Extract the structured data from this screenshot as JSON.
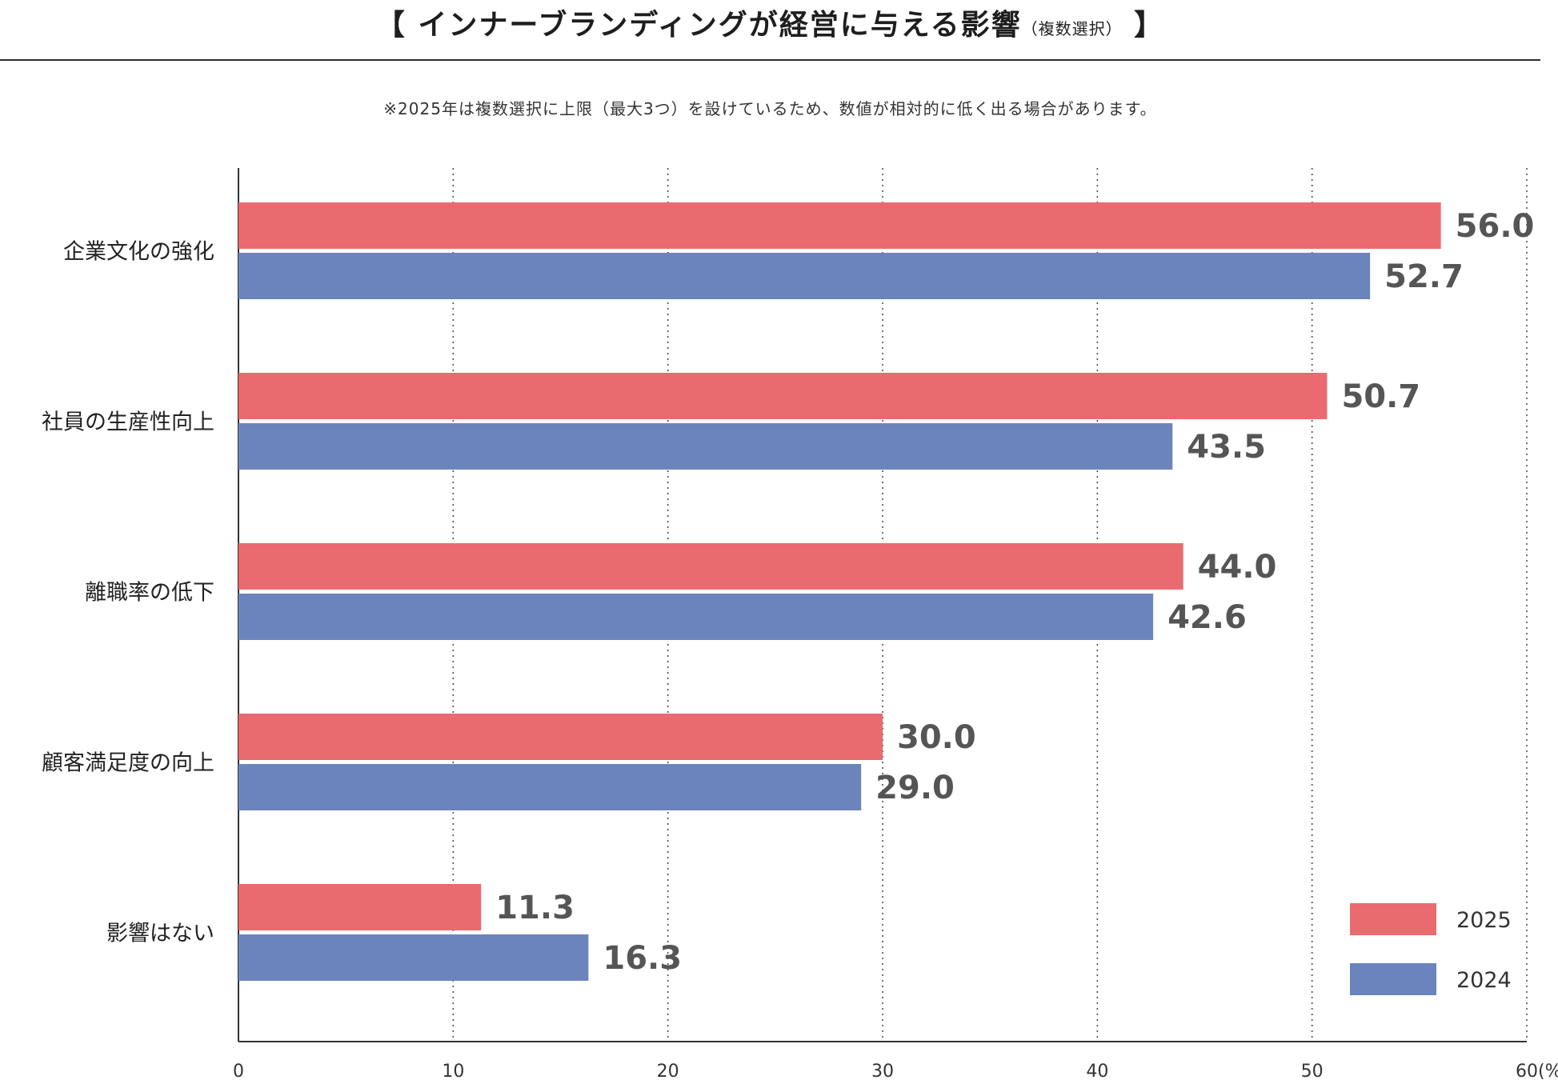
{
  "header": {
    "bracket_open": "【",
    "title": "インナーブランディングが経営に与える影響",
    "subtitle": "（複数選択）",
    "bracket_close": "】",
    "note": "※2025年は複数選択に上限（最大3つ）を設けているため、数値が相対的に低く出る場合があります。"
  },
  "colors": {
    "series_2025": "#E96B6F",
    "series_2024": "#6B84BC",
    "axis": "#333333",
    "grid": "#444444"
  },
  "chart_data": {
    "type": "bar",
    "orientation": "horizontal",
    "categories": [
      "企業文化の強化",
      "社員の生産性向上",
      "離職率の低下",
      "顧客満足度の向上",
      "影響はない"
    ],
    "series": [
      {
        "name": "2025",
        "values": [
          56.0,
          50.7,
          44.0,
          30.0,
          11.3
        ]
      },
      {
        "name": "2024",
        "values": [
          52.7,
          43.5,
          42.6,
          29.0,
          16.3
        ]
      }
    ],
    "value_labels": [
      [
        "56.0",
        "50.7",
        "44.0",
        "30.0",
        "11.3"
      ],
      [
        "52.7",
        "43.5",
        "42.6",
        "29.0",
        "16.3"
      ]
    ],
    "xlim": [
      0,
      60
    ],
    "xticks": [
      "0",
      "10",
      "20",
      "30",
      "40",
      "50",
      "60"
    ],
    "xunit": "(%)",
    "grid": "vertical dotted",
    "legend": "bottom-right"
  }
}
